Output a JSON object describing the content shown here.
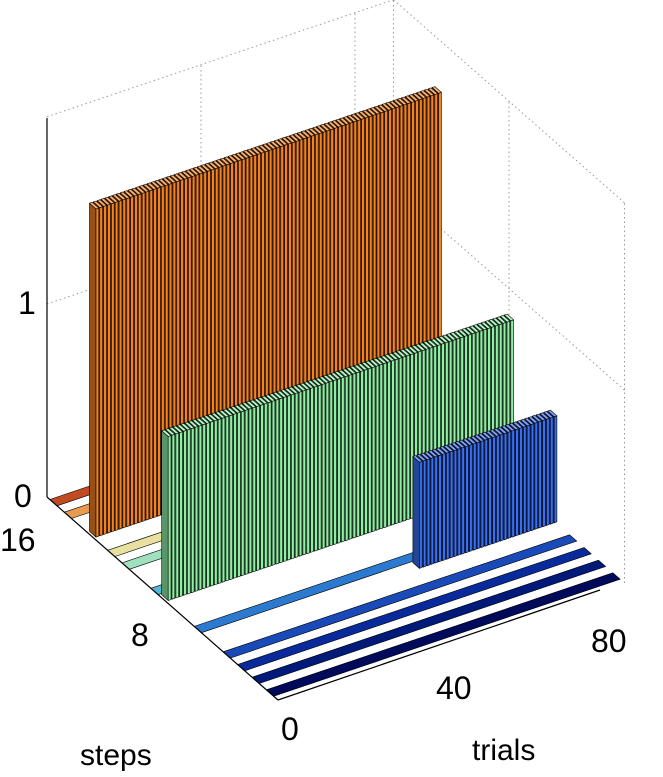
{
  "chart_data": {
    "type": "bar3d",
    "title": "",
    "xlabel": "trials",
    "ylabel": "steps",
    "zlabel": "",
    "x_ticks": [
      "0",
      "40",
      "80"
    ],
    "y_ticks": [
      "8",
      "16"
    ],
    "z_ticks": [
      "0",
      "1"
    ],
    "grid": true,
    "series": [
      {
        "step": 14,
        "x_range": [
          1,
          90
        ],
        "bar_step": 1,
        "z": 0,
        "color": "#f58220"
      },
      {
        "step": 13,
        "x_range": [
          1,
          90
        ],
        "bar_step": 1,
        "z": 1.7,
        "color": "#f58220"
      },
      {
        "step": 10,
        "x_range": [
          1,
          90
        ],
        "bar_step": 1,
        "z": 0,
        "color": "#8ff0a4"
      },
      {
        "step": 8,
        "x_range": [
          1,
          90
        ],
        "bar_step": 1,
        "z": 0.85,
        "color": "#8ff0a4"
      },
      {
        "step": 7,
        "x_range": [
          1,
          90
        ],
        "bar_step": 1,
        "z": 0,
        "color": "#3a6ff2"
      },
      {
        "step": 5,
        "x_range": [
          55,
          90
        ],
        "bar_step": 1,
        "z": 0.55,
        "color": "#3a6ff2"
      }
    ]
  }
}
